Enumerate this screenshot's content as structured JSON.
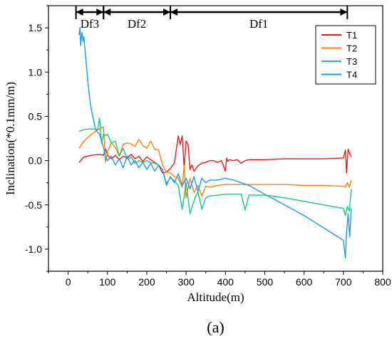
{
  "chart_data": {
    "type": "line",
    "xlabel": "Altitude(m)",
    "ylabel": "Inclination(*0.1mm/m)",
    "caption": "(a)",
    "xlim": [
      -50,
      800
    ],
    "ylim": [
      -1.25,
      1.75
    ],
    "xticks": [
      0,
      100,
      200,
      300,
      400,
      500,
      600,
      700,
      800
    ],
    "yticks": [
      -1.0,
      -0.5,
      0.0,
      0.5,
      1.0,
      1.5
    ],
    "ytick_labels": [
      "-1.0",
      "-0.5",
      "0.0",
      "0.5",
      "1.0",
      "1.5"
    ],
    "grid": false,
    "legend_position": "top-right",
    "zones": [
      {
        "label": "Df3",
        "x_start": 20,
        "x_end": 90
      },
      {
        "label": "Df2",
        "x_start": 90,
        "x_end": 260
      },
      {
        "label": "Df1",
        "x_start": 260,
        "x_end": 710
      }
    ],
    "series": [
      {
        "name": "T1",
        "color": "#e41a1c",
        "x": [
          28,
          40,
          60,
          80,
          90,
          95,
          100,
          110,
          120,
          130,
          140,
          150,
          160,
          170,
          180,
          190,
          200,
          210,
          220,
          230,
          240,
          250,
          260,
          270,
          280,
          285,
          290,
          295,
          300,
          305,
          310,
          315,
          320,
          330,
          340,
          350,
          360,
          370,
          380,
          390,
          400,
          403,
          406,
          410,
          420,
          430,
          440,
          450,
          460,
          500,
          550,
          600,
          650,
          700,
          705,
          708,
          712,
          716,
          720
        ],
        "y": [
          -0.02,
          0.04,
          0.06,
          0.07,
          0.06,
          0.13,
          0.06,
          0.02,
          0.06,
          0.01,
          0.05,
          0.03,
          0.07,
          0.02,
          0.05,
          -0.01,
          0.04,
          0.01,
          -0.02,
          -0.05,
          -0.14,
          -0.13,
          -0.09,
          -0.03,
          0.28,
          0.18,
          0.28,
          -0.08,
          0.22,
          0.18,
          -0.1,
          -0.05,
          -0.12,
          -0.06,
          -0.03,
          -0.02,
          0.0,
          0.0,
          -0.02,
          0.0,
          -0.12,
          0.03,
          -0.01,
          0.01,
          0.0,
          0.01,
          -0.03,
          0.0,
          0.01,
          0.01,
          0.02,
          0.02,
          0.02,
          0.03,
          0.12,
          -0.14,
          0.13,
          0.08,
          0.04
        ]
      },
      {
        "name": "T2",
        "color": "#ff7f0e",
        "x": [
          28,
          40,
          60,
          80,
          90,
          95,
          100,
          110,
          120,
          130,
          140,
          150,
          160,
          170,
          180,
          190,
          200,
          210,
          220,
          230,
          240,
          250,
          260,
          270,
          280,
          290,
          295,
          300,
          310,
          320,
          330,
          340,
          350,
          360,
          380,
          400,
          420,
          440,
          460,
          500,
          550,
          600,
          650,
          700,
          705,
          710,
          715,
          720
        ],
        "y": [
          0.14,
          0.22,
          0.3,
          0.36,
          0.38,
          -0.02,
          0.1,
          0.2,
          0.15,
          0.05,
          0.18,
          0.2,
          0.19,
          0.16,
          0.24,
          0.17,
          0.14,
          0.22,
          0.13,
          0.12,
          -0.05,
          -0.13,
          -0.14,
          -0.18,
          -0.2,
          -0.3,
          -0.06,
          -0.42,
          -0.2,
          -0.36,
          -0.28,
          -0.4,
          -0.29,
          -0.3,
          -0.28,
          -0.27,
          -0.27,
          -0.27,
          -0.27,
          -0.27,
          -0.27,
          -0.28,
          -0.28,
          -0.29,
          -0.3,
          -0.25,
          -0.3,
          -0.22
        ]
      },
      {
        "name": "T3",
        "color": "#1ec67f",
        "x": [
          28,
          40,
          60,
          75,
          80,
          85,
          90,
          95,
          100,
          110,
          120,
          130,
          140,
          150,
          160,
          170,
          180,
          190,
          200,
          210,
          220,
          230,
          240,
          250,
          260,
          270,
          280,
          290,
          300,
          310,
          320,
          330,
          340,
          350,
          360,
          380,
          400,
          420,
          440,
          450,
          460,
          500,
          550,
          600,
          650,
          700,
          705,
          710,
          715,
          720
        ],
        "y": [
          0.33,
          0.35,
          0.36,
          0.35,
          0.48,
          0.2,
          0.3,
          0.28,
          0.3,
          0.2,
          0.22,
          0.05,
          0.14,
          0.02,
          0.04,
          -0.03,
          0.0,
          -0.02,
          0.0,
          -0.02,
          -0.03,
          -0.05,
          -0.1,
          -0.26,
          -0.19,
          -0.23,
          -0.28,
          -0.55,
          -0.25,
          -0.6,
          -0.45,
          -0.35,
          -0.55,
          -0.42,
          -0.4,
          -0.39,
          -0.38,
          -0.38,
          -0.38,
          -0.56,
          -0.39,
          -0.39,
          -0.42,
          -0.46,
          -0.5,
          -0.54,
          -0.62,
          -0.52,
          -0.57,
          -0.32
        ]
      },
      {
        "name": "T4",
        "color": "#1f9ae8",
        "x": [
          28,
          30,
          32,
          35,
          38,
          40,
          45,
          50,
          55,
          60,
          65,
          70,
          75,
          80,
          85,
          90,
          95,
          100,
          110,
          120,
          130,
          140,
          150,
          160,
          170,
          180,
          190,
          200,
          210,
          220,
          230,
          240,
          250,
          260,
          270,
          280,
          290,
          300,
          310,
          320,
          330,
          340,
          350,
          360,
          380,
          400,
          420,
          440,
          460,
          480,
          500,
          550,
          600,
          650,
          700,
          705,
          708,
          712,
          716,
          720
        ],
        "y": [
          1.42,
          1.5,
          1.3,
          1.45,
          1.35,
          1.4,
          1.15,
          0.9,
          0.7,
          0.55,
          0.45,
          0.35,
          0.32,
          0.3,
          0.22,
          0.15,
          0.04,
          0.0,
          0.05,
          -0.05,
          0.02,
          -0.08,
          0.05,
          -0.05,
          0.0,
          -0.08,
          -0.02,
          -0.1,
          -0.03,
          -0.12,
          -0.05,
          -0.1,
          -0.28,
          -0.18,
          -0.25,
          -0.15,
          -0.28,
          -0.2,
          -0.32,
          -0.18,
          -0.35,
          -0.2,
          -0.25,
          -0.22,
          -0.22,
          -0.2,
          -0.22,
          -0.25,
          -0.28,
          -0.33,
          -0.38,
          -0.5,
          -0.62,
          -0.76,
          -0.9,
          -1.1,
          -0.82,
          -0.6,
          -0.86,
          -0.54
        ]
      }
    ]
  }
}
